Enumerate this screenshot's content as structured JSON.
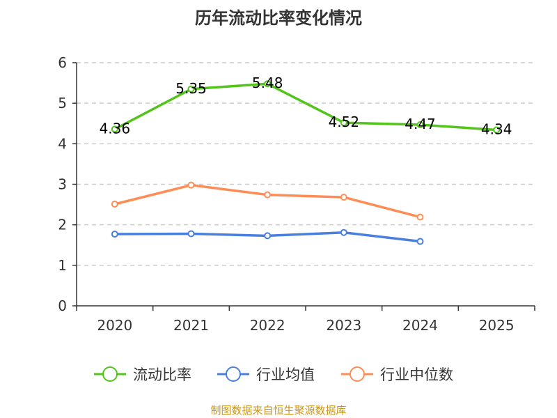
{
  "chart_data": {
    "type": "line",
    "title": "历年流动比率变化情况",
    "categories": [
      "2020",
      "2021",
      "2022",
      "2023",
      "2024",
      "2025"
    ],
    "ylim": [
      0,
      6
    ],
    "yticks": [
      0,
      1,
      2,
      3,
      4,
      5,
      6
    ],
    "grid": true,
    "legend_position": "bottom",
    "series": [
      {
        "name": "流动比率",
        "color": "#52c41a",
        "values": [
          4.36,
          5.35,
          5.48,
          4.52,
          4.47,
          4.34
        ],
        "labels": [
          "4.36",
          "5.35",
          "5.48",
          "4.52",
          "4.47",
          "4.34"
        ]
      },
      {
        "name": "行业均值",
        "color": "#4a7fe0",
        "values": [
          1.77,
          1.78,
          1.73,
          1.81,
          1.59,
          null
        ]
      },
      {
        "name": "行业中位数",
        "color": "#ff8c55",
        "values": [
          2.51,
          2.98,
          2.74,
          2.68,
          2.19,
          null
        ]
      }
    ]
  },
  "source": "制图数据来自恒生聚源数据库"
}
